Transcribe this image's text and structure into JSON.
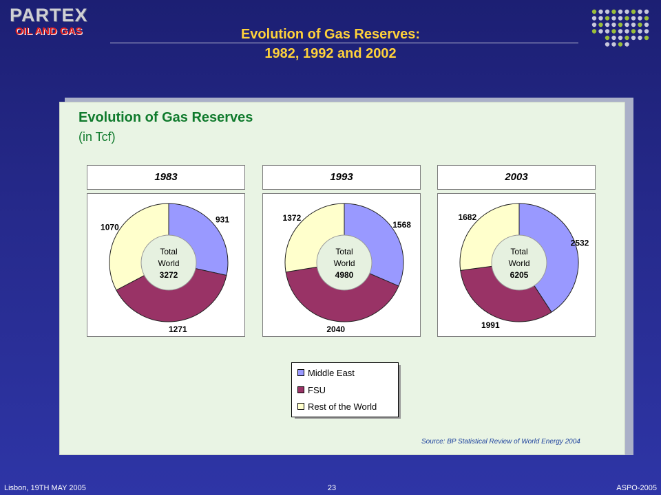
{
  "logo": {
    "line1": "PARTEX",
    "line2": "OIL AND GAS"
  },
  "slide": {
    "title_line1": "Evolution of Gas Reserves:",
    "title_line2": "1982, 1992 and 2002"
  },
  "footer": {
    "left": "Lisbon, 19TH MAY 2005",
    "page": "23",
    "right": "ASPO-2005"
  },
  "colors": {
    "middle_east": "#9999ff",
    "fsu": "#993366",
    "rest": "#ffffcc",
    "title": "#ffd23a",
    "panel_title": "#0f7a2c"
  },
  "chart_data": {
    "type": "pie",
    "title": "Evolution of Gas Reserves",
    "subtitle": "(in Tcf)",
    "legend_position": "bottom-center",
    "series_names": [
      "Middle East",
      "FSU",
      "Rest of the World"
    ],
    "center_label": "Total World",
    "charts": [
      {
        "year": "1983",
        "values": [
          931,
          1271,
          1070
        ],
        "total": "3272"
      },
      {
        "year": "1993",
        "values": [
          1568,
          2040,
          1372
        ],
        "total": "4980"
      },
      {
        "year": "2003",
        "values": [
          2532,
          1991,
          1682
        ],
        "total": "6205"
      }
    ],
    "source": "Source: BP Statistical Review of World Energy 2004"
  }
}
